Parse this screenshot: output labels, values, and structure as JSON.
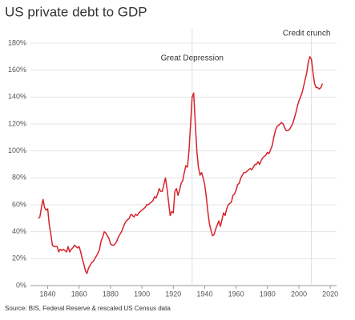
{
  "chart_data": {
    "type": "line",
    "title": "US private debt to GDP",
    "source": "Source: BIS, Federal Reserve & rescaled US Census data",
    "color": "#d7232c",
    "grid": true,
    "xlim": [
      1829,
      2024
    ],
    "ylim": [
      0,
      180
    ],
    "xticks": [
      1840,
      1860,
      1880,
      1900,
      1920,
      1940,
      1960,
      1980,
      2000,
      2020
    ],
    "yticks": [
      {
        "value": 0,
        "label": "0%"
      },
      {
        "value": 20,
        "label": "20%"
      },
      {
        "value": 40,
        "label": "40%"
      },
      {
        "value": 60,
        "label": "60%"
      },
      {
        "value": 80,
        "label": "80%"
      },
      {
        "value": 100,
        "label": "100%"
      },
      {
        "value": 120,
        "label": "120%"
      },
      {
        "value": 140,
        "label": "140%"
      },
      {
        "value": 160,
        "label": "160%"
      },
      {
        "value": 180,
        "label": "180%"
      }
    ],
    "annotations": [
      {
        "text": "Great Depression",
        "x": 1932
      },
      {
        "text": "Credit crunch",
        "x": 2008
      }
    ],
    "x": [
      1834,
      1835,
      1836,
      1837,
      1838,
      1839,
      1840,
      1841,
      1842,
      1843,
      1844,
      1845,
      1846,
      1847,
      1848,
      1849,
      1850,
      1851,
      1852,
      1853,
      1854,
      1855,
      1856,
      1857,
      1858,
      1859,
      1860,
      1861,
      1862,
      1863,
      1864,
      1865,
      1866,
      1867,
      1868,
      1869,
      1870,
      1871,
      1872,
      1873,
      1874,
      1875,
      1876,
      1877,
      1878,
      1879,
      1880,
      1881,
      1882,
      1883,
      1884,
      1885,
      1886,
      1887,
      1888,
      1889,
      1890,
      1891,
      1892,
      1893,
      1894,
      1895,
      1896,
      1897,
      1898,
      1899,
      1900,
      1901,
      1902,
      1903,
      1904,
      1905,
      1906,
      1907,
      1908,
      1909,
      1910,
      1911,
      1912,
      1913,
      1914,
      1915,
      1916,
      1917,
      1918,
      1919,
      1920,
      1921,
      1922,
      1923,
      1924,
      1925,
      1926,
      1927,
      1928,
      1929,
      1930,
      1931,
      1932,
      1933,
      1934,
      1935,
      1936,
      1937,
      1938,
      1939,
      1940,
      1941,
      1942,
      1943,
      1944,
      1945,
      1946,
      1947,
      1948,
      1949,
      1950,
      1951,
      1952,
      1953,
      1954,
      1955,
      1956,
      1957,
      1958,
      1959,
      1960,
      1961,
      1962,
      1963,
      1964,
      1965,
      1966,
      1967,
      1968,
      1969,
      1970,
      1971,
      1972,
      1973,
      1974,
      1975,
      1976,
      1977,
      1978,
      1979,
      1980,
      1981,
      1982,
      1983,
      1984,
      1985,
      1986,
      1987,
      1988,
      1989,
      1990,
      1991,
      1992,
      1993,
      1994,
      1995,
      1996,
      1997,
      1998,
      1999,
      2000,
      2001,
      2002,
      2003,
      2004,
      2005,
      2006,
      2007,
      2008,
      2009,
      2010,
      2011,
      2012,
      2013,
      2014,
      2015
    ],
    "values": [
      50,
      51,
      58,
      64,
      58,
      56,
      57,
      45,
      38,
      30,
      29,
      29,
      29,
      25,
      27,
      26,
      27,
      26,
      25,
      29,
      25,
      27,
      28,
      30,
      29,
      28,
      29,
      25,
      20,
      16,
      11,
      9,
      13,
      15,
      17,
      18,
      20,
      22,
      24,
      27,
      33,
      36,
      40,
      39,
      37,
      35,
      31,
      30,
      30,
      31,
      33,
      36,
      38,
      40,
      43,
      46,
      48,
      49,
      50,
      53,
      52,
      51,
      53,
      52,
      54,
      55,
      56,
      57,
      58,
      60,
      60,
      61,
      62,
      63,
      66,
      65,
      68,
      72,
      70,
      70,
      75,
      80,
      72,
      62,
      52,
      55,
      54,
      70,
      72,
      67,
      71,
      76,
      78,
      84,
      89,
      88,
      100,
      120,
      140,
      143,
      120,
      100,
      88,
      82,
      84,
      80,
      75,
      66,
      55,
      46,
      41,
      37,
      38,
      42,
      45,
      48,
      44,
      49,
      54,
      52,
      57,
      60,
      61,
      62,
      67,
      68,
      71,
      75,
      76,
      80,
      82,
      84,
      84,
      85,
      86,
      87,
      86,
      88,
      90,
      90,
      92,
      90,
      93,
      95,
      96,
      97,
      99,
      98,
      101,
      104,
      110,
      115,
      118,
      119,
      120,
      121,
      120,
      117,
      115,
      115,
      116,
      118,
      120,
      124,
      128,
      133,
      137,
      140,
      143,
      148,
      153,
      158,
      166,
      170,
      168,
      158,
      150,
      147,
      147,
      146,
      147,
      150
    ]
  }
}
